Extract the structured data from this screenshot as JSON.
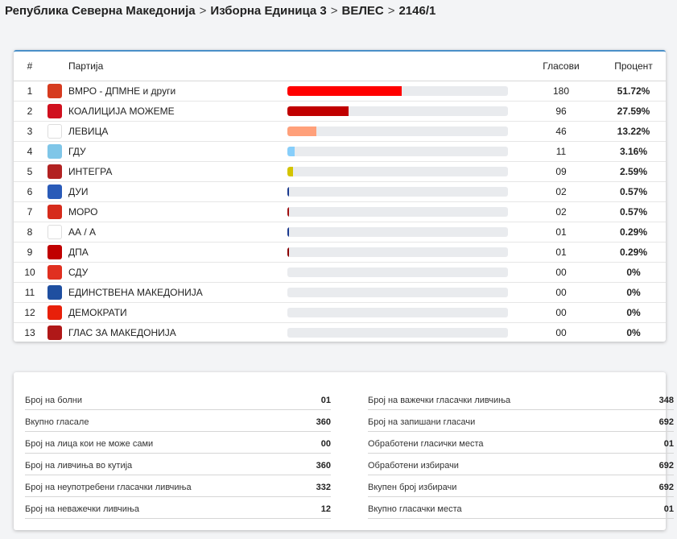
{
  "breadcrumb": {
    "items": [
      "Република Северна Македонија",
      "Изборна Единица 3",
      "ВЕЛЕС",
      "2146/1"
    ],
    "separator": ">"
  },
  "results": {
    "headers": {
      "num": "#",
      "party": "Партија",
      "votes": "Гласови",
      "percent": "Процент"
    },
    "rows": [
      {
        "num": "1",
        "party": "ВМРО - ДПМНЕ и други",
        "votes": "180",
        "percent": "51.72%",
        "share": 0.5172,
        "bar_color": "#ff0000",
        "logo_color": "#d63b1f",
        "logo": "vmro-icon"
      },
      {
        "num": "2",
        "party": "КОАЛИЦИЈА МОЖЕМЕ",
        "votes": "96",
        "percent": "27.59%",
        "share": 0.2759,
        "bar_color": "#c00000",
        "logo_color": "#d0101e",
        "logo": "sdsm-icon"
      },
      {
        "num": "3",
        "party": "ЛЕВИЦА",
        "votes": "46",
        "percent": "13.22%",
        "share": 0.1322,
        "bar_color": "#ffa07a",
        "logo_color": "#ffffff",
        "logo": "levica-icon"
      },
      {
        "num": "4",
        "party": "ГДУ",
        "votes": "11",
        "percent": "3.16%",
        "share": 0.0316,
        "bar_color": "#87cefa",
        "logo_color": "#7fc6e8",
        "logo": "gdu-icon"
      },
      {
        "num": "5",
        "party": "ИНТЕГРА",
        "votes": "09",
        "percent": "2.59%",
        "share": 0.0259,
        "bar_color": "#d4c400",
        "logo_color": "#b22222",
        "logo": "integra-icon"
      },
      {
        "num": "6",
        "party": "ДУИ",
        "votes": "02",
        "percent": "0.57%",
        "share": 0.0057,
        "bar_color": "#1a3a8f",
        "logo_color": "#2a5bb8",
        "logo": "dui-icon"
      },
      {
        "num": "7",
        "party": "МОРО",
        "votes": "02",
        "percent": "0.57%",
        "share": 0.0057,
        "bar_color": "#a01010",
        "logo_color": "#d62b1b",
        "logo": "moro-icon"
      },
      {
        "num": "8",
        "party": "АА / А",
        "votes": "01",
        "percent": "0.29%",
        "share": 0.0029,
        "bar_color": "#1a3a8f",
        "logo_color": "#ffffff",
        "logo": "aa-icon"
      },
      {
        "num": "9",
        "party": "ДПА",
        "votes": "01",
        "percent": "0.29%",
        "share": 0.0029,
        "bar_color": "#8b0000",
        "logo_color": "#c00000",
        "logo": "dpa-icon"
      },
      {
        "num": "10",
        "party": "СДУ",
        "votes": "00",
        "percent": "0%",
        "share": 0,
        "bar_color": "#cccccc",
        "logo_color": "#e03020",
        "logo": "sdu-icon"
      },
      {
        "num": "11",
        "party": "ЕДИНСТВЕНА МАКЕДОНИЈА",
        "votes": "00",
        "percent": "0%",
        "share": 0,
        "bar_color": "#cccccc",
        "logo_color": "#1f4fa0",
        "logo": "edinstvena-icon"
      },
      {
        "num": "12",
        "party": "ДЕМОКРАТИ",
        "votes": "00",
        "percent": "0%",
        "share": 0,
        "bar_color": "#cccccc",
        "logo_color": "#e8200a",
        "logo": "demokrati-icon"
      },
      {
        "num": "13",
        "party": "ГЛАС ЗА МАКЕДОНИЈА",
        "votes": "00",
        "percent": "0%",
        "share": 0,
        "bar_color": "#cccccc",
        "logo_color": "#b01818",
        "logo": "glas-icon"
      }
    ]
  },
  "stats": {
    "left": [
      {
        "label": "Број на болни",
        "value": "01"
      },
      {
        "label": "Вкупно гласале",
        "value": "360"
      },
      {
        "label": "Број на лица кои не може сами",
        "value": "00"
      },
      {
        "label": "Број на ливчиња во кутија",
        "value": "360"
      },
      {
        "label": "Број на неупотребени гласачки ливчиња",
        "value": "332"
      },
      {
        "label": "Број на неважечки ливчиња",
        "value": "12"
      }
    ],
    "right": [
      {
        "label": "Број на важечки гласачки ливчиња",
        "value": "348"
      },
      {
        "label": "Број на запишани гласачи",
        "value": "692"
      },
      {
        "label": "Обработени гласички места",
        "value": "01"
      },
      {
        "label": "Обработени избирачи",
        "value": "692"
      },
      {
        "label": "Вкупен број избирачи",
        "value": "692"
      },
      {
        "label": "Вкупно гласачки места",
        "value": "01"
      }
    ]
  }
}
